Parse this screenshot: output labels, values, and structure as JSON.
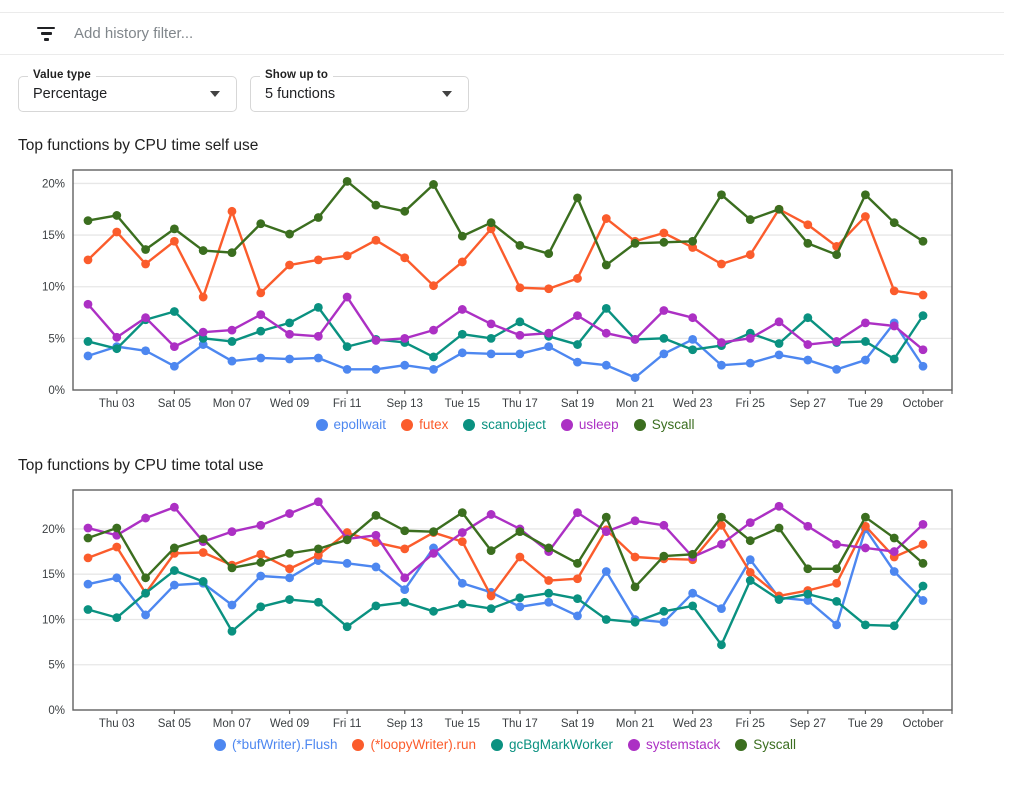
{
  "filter_bar": {
    "placeholder": "Add history filter..."
  },
  "controls": {
    "value_type": {
      "label": "Value type",
      "value": "Percentage"
    },
    "show_up_to": {
      "label": "Show up to",
      "value": "5 functions"
    }
  },
  "colors": {
    "blue": "#4d87f0",
    "orange": "#fb5c2c",
    "teal": "#0a9180",
    "purple": "#ac30c4",
    "green": "#3b6e1f",
    "grid": "#e7e7e7",
    "axis": "#616161",
    "tick_text": "#3c4043"
  },
  "chart_data": [
    {
      "type": "line",
      "title": "Top functions by CPU time self use",
      "ylabel_format": "percent",
      "yticks": [
        0,
        5,
        10,
        15,
        20
      ],
      "ylim": [
        0,
        21.3
      ],
      "grid": true,
      "legend_position": "bottom",
      "x_tick_labels": [
        "Thu 03",
        "Sat 05",
        "Mon 07",
        "Wed 09",
        "Fri 11",
        "Sep 13",
        "Tue 15",
        "Thu 17",
        "Sat 19",
        "Mon 21",
        "Wed 23",
        "Fri 25",
        "Sep 27",
        "Tue 29",
        "October"
      ],
      "series": [
        {
          "name": "epollwait",
          "color_key": "blue",
          "values": [
            3.3,
            4.2,
            3.8,
            2.3,
            4.4,
            2.8,
            3.1,
            3.0,
            3.1,
            2.0,
            2.0,
            2.4,
            2.0,
            3.6,
            3.5,
            3.5,
            4.2,
            2.7,
            2.4,
            1.2,
            3.5,
            4.9,
            2.4,
            2.6,
            3.4,
            2.9,
            2.0,
            2.9,
            6.5,
            2.3
          ]
        },
        {
          "name": "futex",
          "color_key": "orange",
          "values": [
            12.6,
            15.3,
            12.2,
            14.4,
            9.0,
            17.3,
            9.4,
            12.1,
            12.6,
            13.0,
            14.5,
            12.8,
            10.1,
            12.4,
            15.6,
            9.9,
            9.8,
            10.8,
            16.6,
            14.4,
            15.2,
            13.8,
            12.2,
            13.1,
            17.5,
            16.0,
            13.9,
            16.8,
            9.6,
            9.2
          ]
        },
        {
          "name": "scanobject",
          "color_key": "teal",
          "values": [
            4.7,
            4.0,
            6.8,
            7.6,
            5.0,
            4.7,
            5.7,
            6.5,
            8.0,
            4.2,
            4.9,
            4.6,
            3.2,
            5.4,
            5.0,
            6.6,
            5.2,
            4.4,
            7.9,
            4.9,
            5.0,
            3.9,
            4.3,
            5.5,
            4.5,
            7.0,
            4.6,
            4.7,
            3.0,
            7.2
          ]
        },
        {
          "name": "usleep",
          "color_key": "purple",
          "values": [
            8.3,
            5.1,
            7.0,
            4.2,
            5.6,
            5.8,
            7.3,
            5.4,
            5.2,
            9.0,
            4.8,
            5.0,
            5.8,
            7.8,
            6.4,
            5.3,
            5.5,
            7.2,
            5.5,
            4.9,
            7.7,
            7.0,
            4.6,
            5.0,
            6.6,
            4.4,
            4.7,
            6.5,
            6.2,
            3.9
          ]
        },
        {
          "name": "Syscall",
          "color_key": "green",
          "values": [
            16.4,
            16.9,
            13.6,
            15.6,
            13.5,
            13.3,
            16.1,
            15.1,
            16.7,
            20.2,
            17.9,
            17.3,
            19.9,
            14.9,
            16.2,
            14.0,
            13.2,
            18.6,
            12.1,
            14.2,
            14.3,
            14.4,
            18.9,
            16.5,
            17.5,
            14.2,
            13.1,
            18.9,
            16.2,
            14.4
          ]
        }
      ]
    },
    {
      "type": "line",
      "title": "Top functions by CPU time total use",
      "ylabel_format": "percent",
      "yticks": [
        0,
        5,
        10,
        15,
        20
      ],
      "ylim": [
        0,
        24.3
      ],
      "grid": true,
      "legend_position": "bottom",
      "x_tick_labels": [
        "Thu 03",
        "Sat 05",
        "Mon 07",
        "Wed 09",
        "Fri 11",
        "Sep 13",
        "Tue 15",
        "Thu 17",
        "Sat 19",
        "Mon 21",
        "Wed 23",
        "Fri 25",
        "Sep 27",
        "Tue 29",
        "October"
      ],
      "series": [
        {
          "name": "(*bufWriter).Flush",
          "color_key": "blue",
          "values": [
            13.9,
            14.6,
            10.5,
            13.8,
            14.0,
            11.6,
            14.8,
            14.6,
            16.5,
            16.2,
            15.8,
            13.3,
            17.9,
            14.0,
            13.0,
            11.4,
            11.9,
            10.4,
            15.3,
            10.0,
            9.7,
            12.9,
            11.2,
            16.6,
            12.4,
            12.1,
            9.4,
            20.0,
            15.3,
            12.1
          ]
        },
        {
          "name": "(*loopyWriter).run",
          "color_key": "orange",
          "values": [
            16.8,
            18.0,
            12.9,
            17.3,
            17.4,
            16.0,
            17.2,
            15.6,
            17.1,
            19.6,
            18.5,
            17.8,
            19.6,
            18.6,
            12.6,
            16.9,
            14.3,
            14.5,
            19.9,
            16.9,
            16.7,
            16.6,
            20.4,
            15.2,
            12.6,
            13.2,
            14.0,
            20.3,
            16.9,
            18.3
          ]
        },
        {
          "name": "gcBgMarkWorker",
          "color_key": "teal",
          "values": [
            11.1,
            10.2,
            12.9,
            15.4,
            14.2,
            8.7,
            11.4,
            12.2,
            11.9,
            9.2,
            11.5,
            11.9,
            10.9,
            11.7,
            11.2,
            12.4,
            12.9,
            12.3,
            10.0,
            9.7,
            10.9,
            11.5,
            7.2,
            14.3,
            12.2,
            12.8,
            12.0,
            9.4,
            9.3,
            13.7
          ]
        },
        {
          "name": "systemstack",
          "color_key": "purple",
          "values": [
            20.1,
            19.3,
            21.2,
            22.4,
            18.6,
            19.7,
            20.4,
            21.7,
            23.0,
            18.9,
            19.3,
            14.6,
            17.3,
            19.6,
            21.6,
            20.0,
            17.5,
            21.8,
            19.7,
            20.9,
            20.4,
            16.9,
            18.3,
            20.7,
            22.5,
            20.3,
            18.3,
            17.9,
            17.5,
            20.5
          ]
        },
        {
          "name": "Syscall",
          "color_key": "green",
          "values": [
            19.0,
            20.1,
            14.6,
            17.9,
            18.9,
            15.7,
            16.3,
            17.3,
            17.8,
            18.8,
            21.5,
            19.8,
            19.7,
            21.8,
            17.6,
            19.7,
            17.9,
            16.2,
            21.3,
            13.6,
            17.0,
            17.2,
            21.3,
            18.7,
            20.1,
            15.6,
            15.6,
            21.3,
            19.0,
            16.2
          ]
        }
      ]
    }
  ]
}
